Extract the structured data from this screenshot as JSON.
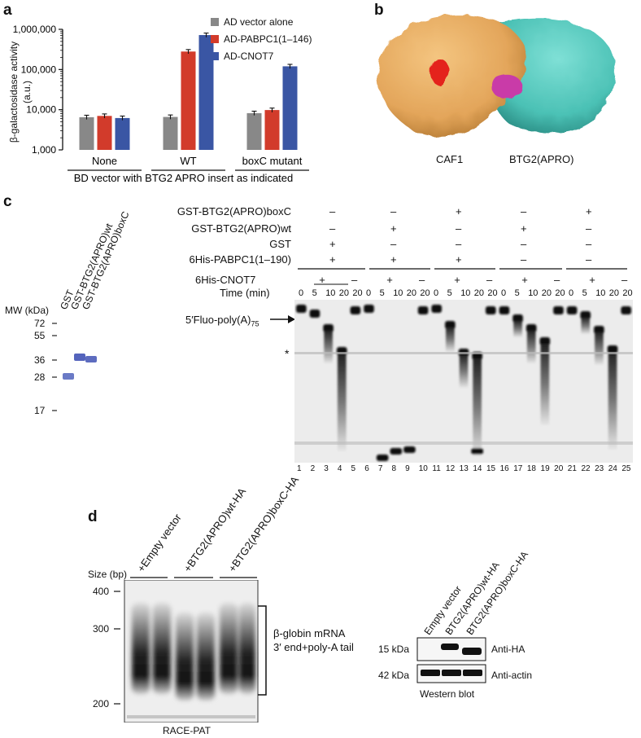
{
  "panel_a": {
    "letter": "a",
    "chart_data": {
      "type": "bar",
      "yscale": "log",
      "ylim": [
        1000,
        1000000
      ],
      "yticks": [
        "1,000",
        "10,000",
        "100,000",
        "1,000,000"
      ],
      "ylabel_line1": "β-galactosidase activity",
      "ylabel_line2": "(a.u.)",
      "categories": [
        "None",
        "WT",
        "boxC mutant"
      ],
      "xlabel": "BD vector with BTG2 APRO insert as indicated",
      "series": [
        {
          "name": "AD vector alone",
          "color": "#888888",
          "values": [
            6500,
            6600,
            8200
          ]
        },
        {
          "name": "AD-PABPC1(1–146)",
          "color": "#d23b2b",
          "values": [
            7000,
            280000,
            9800
          ]
        },
        {
          "name": "AD-CNOT7",
          "color": "#3a56a4",
          "values": [
            6200,
            720000,
            120000
          ]
        }
      ]
    }
  },
  "panel_b": {
    "letter": "b",
    "label_left": "CAF1",
    "label_right": "BTG2(APRO)"
  },
  "panel_c": {
    "letter": "c",
    "marker_header": "MW (kDa)",
    "marker_lanes": [
      "GST",
      "GST-BTG2(APRO)wt",
      "GST-BTG2(APRO)boxC"
    ],
    "mw_marks": [
      "72",
      "55",
      "36",
      "28",
      "17"
    ],
    "rows": [
      {
        "label": "GST-BTG2(APRO)boxC",
        "values": [
          "–",
          "–",
          "+",
          "–",
          "+"
        ]
      },
      {
        "label": "GST-BTG2(APRO)wt",
        "values": [
          "–",
          "+",
          "–",
          "+",
          "–"
        ]
      },
      {
        "label": "GST",
        "values": [
          "+",
          "–",
          "–",
          "–",
          "–"
        ]
      },
      {
        "label": "6His-PABPC1(1–190)",
        "values": [
          "+",
          "+",
          "+",
          "–",
          "–"
        ]
      }
    ],
    "cnot7_label": "6His-CNOT7",
    "time_label": "Time (min)",
    "time_values": [
      "0",
      "5",
      "10",
      "20",
      "20"
    ],
    "cnot7_values": [
      "+",
      "–"
    ],
    "substrate_label": "5′Fluo-poly(A)",
    "substrate_sub": "75",
    "asterisk": "*",
    "lane_numbers": [
      "1",
      "2",
      "3",
      "4",
      "5",
      "6",
      "7",
      "8",
      "9",
      "10",
      "11",
      "12",
      "13",
      "14",
      "15",
      "16",
      "17",
      "18",
      "19",
      "20",
      "21",
      "22",
      "23",
      "24",
      "25"
    ]
  },
  "panel_d": {
    "letter": "d",
    "size_header": "Size (bp)",
    "sizes": [
      "400",
      "300",
      "200"
    ],
    "lanes": [
      "+Empty vector",
      "+BTG2(APRO)wt-HA",
      "+BTG2(APRO)boxC-HA"
    ],
    "bracket_line1": "β-globin mRNA",
    "bracket_line2": "3′ end+poly-A tail",
    "gel_caption": "RACE-PAT",
    "wb_lanes": [
      "Empty vector",
      "BTG2(APRO)wt-HA",
      "BTG2(APRO)boxC-HA"
    ],
    "wb_rows": [
      {
        "kda": "15 kDa",
        "antibody": "Anti-HA"
      },
      {
        "kda": "42 kDa",
        "antibody": "Anti-actin"
      }
    ],
    "wb_caption": "Western blot"
  }
}
